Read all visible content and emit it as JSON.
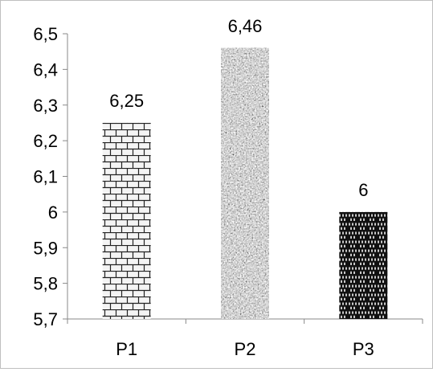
{
  "chart_data": {
    "type": "bar",
    "categories": [
      "P1",
      "P2",
      "P3"
    ],
    "values": [
      6.25,
      6.46,
      6
    ],
    "data_labels": [
      "6,25",
      "6,46",
      "6"
    ],
    "ylim": [
      5.7,
      6.5
    ],
    "y_ticks": [
      5.7,
      5.8,
      5.9,
      6,
      6.1,
      6.2,
      6.3,
      6.4,
      6.5
    ],
    "y_tick_labels": [
      "5,7",
      "5,8",
      "5,9",
      "6",
      "6,1",
      "6,2",
      "6,3",
      "6,4",
      "6,5"
    ],
    "grid": false,
    "legend": "none",
    "bar_patterns": [
      "light-brick",
      "gray-granite",
      "dark-brick"
    ]
  }
}
